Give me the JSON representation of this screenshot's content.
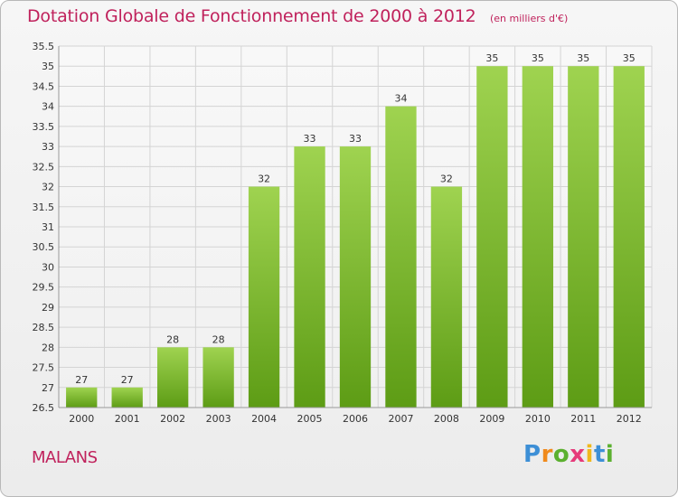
{
  "header": {
    "title": "Dotation Globale de Fonctionnement de 2000 à 2012",
    "subtitle": "(en milliers d'€)"
  },
  "footer": {
    "commune": "MALANS",
    "logo": "Proxiti"
  },
  "colors": {
    "title": "#c0225c",
    "bar_top": "#9fd350",
    "bar_bottom": "#5d9c15",
    "grid": "#d4d4d4"
  },
  "chart_data": {
    "type": "bar",
    "title": "Dotation Globale de Fonctionnement de 2000 à 2012",
    "subtitle": "(en milliers d'€)",
    "xlabel": "",
    "ylabel": "",
    "categories": [
      "2000",
      "2001",
      "2002",
      "2003",
      "2004",
      "2005",
      "2006",
      "2007",
      "2008",
      "2009",
      "2010",
      "2011",
      "2012"
    ],
    "values": [
      27,
      27,
      28,
      28,
      32,
      33,
      33,
      34,
      32,
      35,
      35,
      35,
      35
    ],
    "ylim": [
      26.5,
      35.5
    ],
    "yticks": [
      "26.5",
      "27",
      "27.5",
      "28",
      "28.5",
      "29",
      "29.5",
      "30",
      "30.5",
      "31",
      "31.5",
      "32",
      "32.5",
      "33",
      "33.5",
      "34",
      "34.5",
      "35",
      "35.5"
    ],
    "grid": true,
    "legend": "none"
  }
}
